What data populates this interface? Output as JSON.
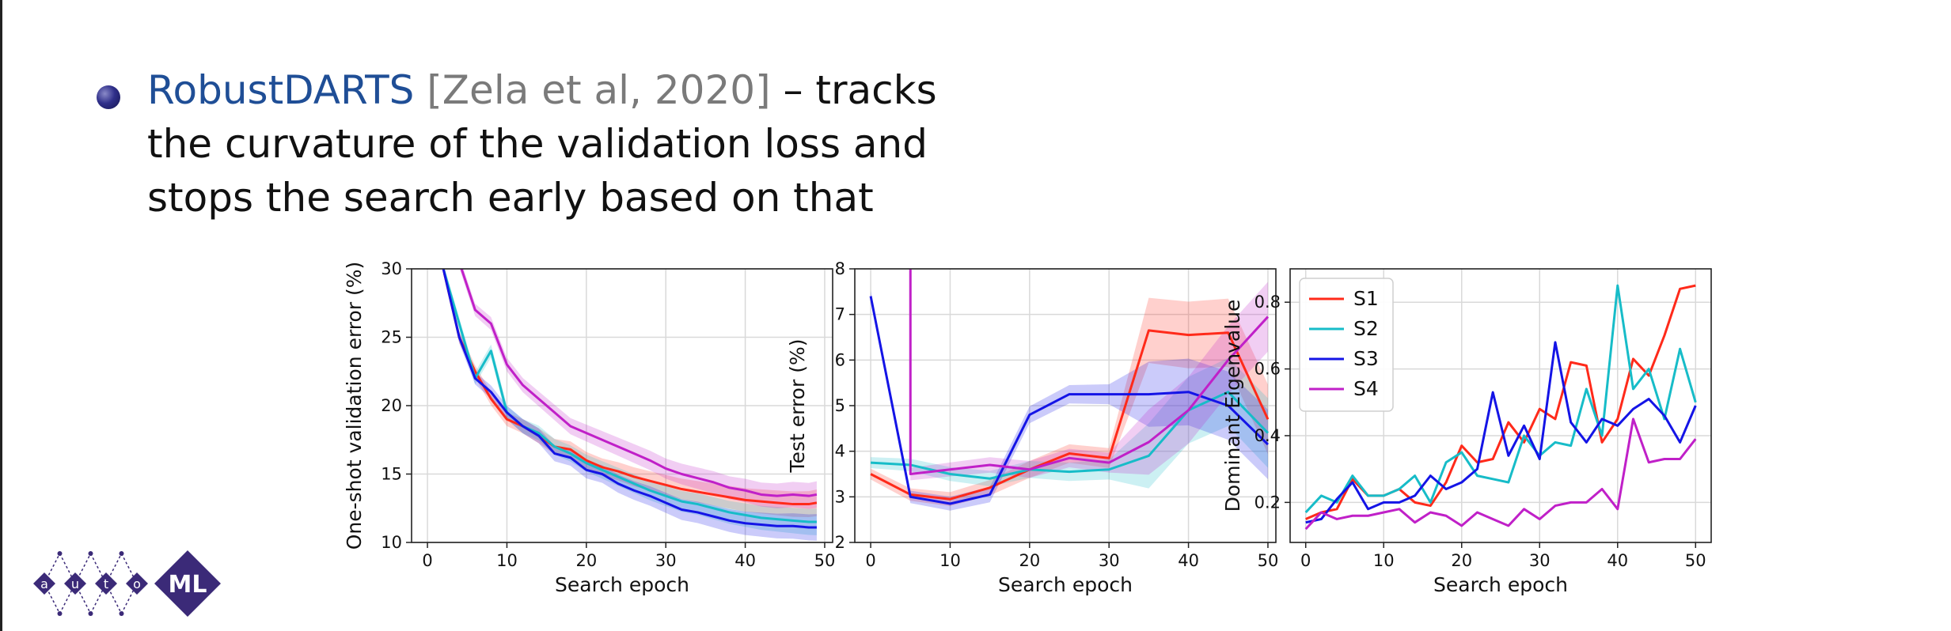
{
  "slide": {
    "method": "RobustDARTS",
    "citation": "[Zela et al, 2020]",
    "text_after": " – tracks",
    "line2": "the curvature of the validation loss and",
    "line3": "stops the search early based on that"
  },
  "logo": {
    "letters": [
      "a",
      "u",
      "t",
      "o"
    ],
    "suffix": "ML",
    "color": "#3b2a78"
  },
  "colors": {
    "S1": "#ff2a1a",
    "S2": "#17bcc8",
    "S3": "#1414e6",
    "S4": "#c020c8"
  },
  "chart_data": [
    {
      "type": "line",
      "xlabel": "Search epoch",
      "ylabel": "One-shot validation error (%)",
      "xlim": [
        -2,
        51
      ],
      "ylim": [
        10,
        30
      ],
      "xticks": [
        0,
        10,
        20,
        30,
        40,
        50
      ],
      "yticks": [
        10,
        15,
        20,
        25,
        30
      ],
      "grid": true,
      "bands": true,
      "series": [
        {
          "key": "S1",
          "x": [
            2,
            4,
            6,
            8,
            10,
            12,
            14,
            16,
            18,
            20,
            22,
            24,
            26,
            28,
            30,
            32,
            34,
            36,
            38,
            40,
            42,
            44,
            46,
            48,
            49
          ],
          "y": [
            30,
            25,
            22.5,
            20.5,
            19,
            18.5,
            17.8,
            17,
            16.8,
            16,
            15.5,
            15.2,
            14.8,
            14.5,
            14.2,
            13.9,
            13.7,
            13.5,
            13.3,
            13.1,
            13,
            12.9,
            12.8,
            12.8,
            12.9
          ]
        },
        {
          "key": "S2",
          "x": [
            2,
            4,
            6,
            8,
            10,
            12,
            14,
            16,
            18,
            20,
            22,
            24,
            26,
            28,
            30,
            32,
            34,
            36,
            38,
            40,
            42,
            44,
            46,
            48,
            49
          ],
          "y": [
            30,
            26,
            22,
            24,
            19.5,
            18.5,
            18,
            17,
            16.5,
            15.8,
            15.3,
            14.8,
            14.3,
            13.8,
            13.4,
            13,
            12.8,
            12.5,
            12.2,
            12,
            11.8,
            11.7,
            11.6,
            11.5,
            11.5
          ]
        },
        {
          "key": "S3",
          "x": [
            2,
            4,
            6,
            8,
            10,
            12,
            14,
            16,
            18,
            20,
            22,
            24,
            26,
            28,
            30,
            32,
            34,
            36,
            38,
            40,
            42,
            44,
            46,
            48,
            49
          ],
          "y": [
            30,
            25,
            22,
            21,
            19.5,
            18.5,
            17.8,
            16.5,
            16.2,
            15.3,
            15,
            14.3,
            13.8,
            13.4,
            12.9,
            12.4,
            12.2,
            11.9,
            11.6,
            11.4,
            11.3,
            11.2,
            11.2,
            11.1,
            11.1
          ]
        },
        {
          "key": "S4",
          "x": [
            2,
            4,
            6,
            8,
            10,
            12,
            14,
            16,
            18,
            20,
            22,
            24,
            26,
            28,
            30,
            32,
            34,
            36,
            38,
            40,
            42,
            44,
            46,
            48,
            49
          ],
          "y": [
            31,
            30.5,
            27,
            26,
            23,
            21.5,
            20.5,
            19.5,
            18.5,
            18,
            17.5,
            17,
            16.5,
            16,
            15.4,
            15,
            14.7,
            14.4,
            14,
            13.8,
            13.5,
            13.4,
            13.5,
            13.4,
            13.5
          ]
        }
      ]
    },
    {
      "type": "line",
      "xlabel": "Search epoch",
      "ylabel": "Test error (%)",
      "xlim": [
        -2,
        51
      ],
      "ylim": [
        2,
        8
      ],
      "xticks": [
        0,
        10,
        20,
        30,
        40,
        50
      ],
      "yticks": [
        2,
        3,
        4,
        5,
        6,
        7,
        8
      ],
      "grid": true,
      "bands": true,
      "series": [
        {
          "key": "S1",
          "x": [
            0,
            5,
            10,
            15,
            20,
            25,
            30,
            35,
            40,
            45,
            50
          ],
          "y": [
            3.5,
            3.05,
            2.95,
            3.2,
            3.6,
            3.95,
            3.85,
            6.65,
            6.55,
            6.6,
            4.7
          ]
        },
        {
          "key": "S2",
          "x": [
            0,
            5,
            10,
            15,
            20,
            25,
            30,
            35,
            40,
            45,
            50
          ],
          "y": [
            3.75,
            3.7,
            3.5,
            3.4,
            3.6,
            3.55,
            3.6,
            3.9,
            4.9,
            5.3,
            4.4
          ]
        },
        {
          "key": "S3",
          "x": [
            0,
            5,
            10,
            15,
            20,
            25,
            30,
            35,
            40,
            45,
            50
          ],
          "y": [
            7.4,
            3.0,
            2.85,
            3.05,
            4.8,
            5.25,
            5.25,
            5.25,
            5.3,
            5.0,
            4.15
          ]
        },
        {
          "key": "S4",
          "x": [
            5,
            5,
            10,
            15,
            20,
            25,
            30,
            35,
            40,
            45,
            50
          ],
          "y": [
            8,
            3.5,
            3.6,
            3.7,
            3.6,
            3.85,
            3.75,
            4.2,
            4.9,
            6.0,
            6.95
          ]
        }
      ]
    },
    {
      "type": "line",
      "xlabel": "Search epoch",
      "ylabel": "Dominant Eigenvalue",
      "xlim": [
        -2,
        52
      ],
      "ylim": [
        0.08,
        0.9
      ],
      "xticks": [
        0,
        10,
        20,
        30,
        40,
        50
      ],
      "yticks": [
        0.2,
        0.4,
        0.6,
        0.8
      ],
      "ytick_labels": [
        "0.2",
        "0.4",
        "0.6",
        "0.8"
      ],
      "grid": true,
      "bands": false,
      "legend": "top-left",
      "series": [
        {
          "key": "S1",
          "name": "S1",
          "x": [
            0,
            2,
            4,
            6,
            8,
            10,
            12,
            14,
            16,
            18,
            20,
            22,
            24,
            26,
            28,
            30,
            32,
            34,
            36,
            38,
            40,
            42,
            44,
            46,
            48,
            50
          ],
          "y": [
            0.15,
            0.17,
            0.18,
            0.27,
            0.22,
            0.22,
            0.24,
            0.2,
            0.19,
            0.26,
            0.37,
            0.32,
            0.33,
            0.44,
            0.38,
            0.48,
            0.45,
            0.62,
            0.61,
            0.38,
            0.45,
            0.63,
            0.58,
            0.7,
            0.84,
            0.85
          ]
        },
        {
          "key": "S2",
          "name": "S2",
          "x": [
            0,
            2,
            4,
            6,
            8,
            10,
            12,
            14,
            16,
            18,
            20,
            22,
            24,
            26,
            28,
            30,
            32,
            34,
            36,
            38,
            40,
            42,
            44,
            46,
            48,
            50
          ],
          "y": [
            0.17,
            0.22,
            0.2,
            0.28,
            0.22,
            0.22,
            0.24,
            0.28,
            0.2,
            0.32,
            0.35,
            0.28,
            0.27,
            0.26,
            0.4,
            0.34,
            0.38,
            0.37,
            0.54,
            0.4,
            0.85,
            0.54,
            0.6,
            0.45,
            0.66,
            0.5
          ]
        },
        {
          "key": "S3",
          "name": "S3",
          "x": [
            0,
            2,
            4,
            6,
            8,
            10,
            12,
            14,
            16,
            18,
            20,
            22,
            24,
            26,
            28,
            30,
            32,
            34,
            36,
            38,
            40,
            42,
            44,
            46,
            48,
            50
          ],
          "y": [
            0.14,
            0.15,
            0.21,
            0.26,
            0.18,
            0.2,
            0.2,
            0.22,
            0.28,
            0.24,
            0.26,
            0.3,
            0.53,
            0.34,
            0.43,
            0.33,
            0.68,
            0.44,
            0.38,
            0.45,
            0.43,
            0.48,
            0.51,
            0.46,
            0.38,
            0.49
          ]
        },
        {
          "key": "S4",
          "name": "S4",
          "x": [
            0,
            2,
            4,
            6,
            8,
            10,
            12,
            14,
            16,
            18,
            20,
            22,
            24,
            26,
            28,
            30,
            32,
            34,
            36,
            38,
            40,
            42,
            44,
            46,
            48,
            50
          ],
          "y": [
            0.12,
            0.17,
            0.15,
            0.16,
            0.16,
            0.17,
            0.18,
            0.14,
            0.17,
            0.16,
            0.13,
            0.17,
            0.15,
            0.13,
            0.18,
            0.15,
            0.19,
            0.2,
            0.2,
            0.24,
            0.18,
            0.45,
            0.32,
            0.33,
            0.33,
            0.39
          ]
        }
      ]
    }
  ]
}
